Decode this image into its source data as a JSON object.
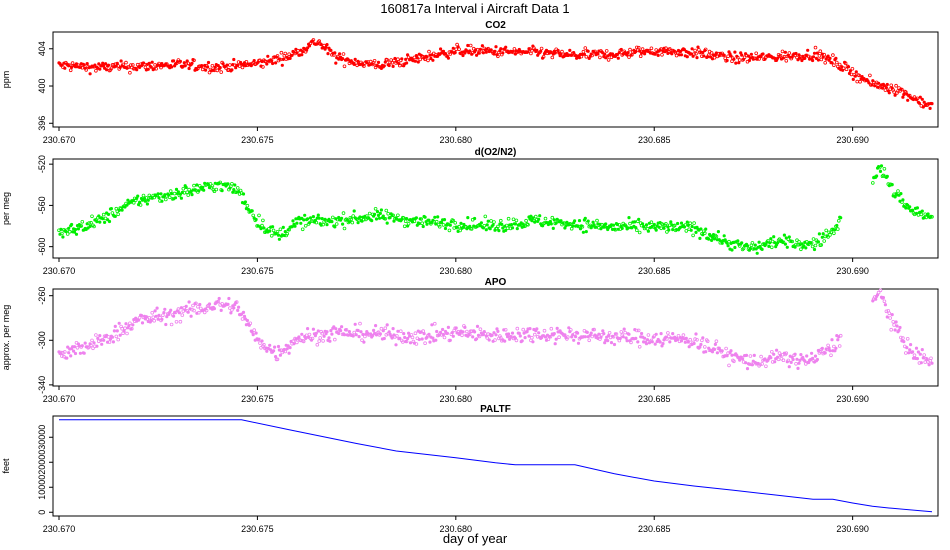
{
  "figure": {
    "title": "160817a   Interval i Aircraft Data 1",
    "xlabel": "day of year"
  },
  "chart_data": [
    {
      "type": "scatter",
      "title": "CO2",
      "ylabel": "ppm",
      "color": "#ff0000",
      "xlim": [
        230.67,
        230.692
      ],
      "ylim": [
        395.6,
        405.8
      ],
      "yticks": [
        396,
        400,
        404
      ],
      "xticks": [
        "230.670",
        "230.675",
        "230.680",
        "230.685",
        "230.690"
      ],
      "x": [
        230.67,
        230.671,
        230.672,
        230.673,
        230.674,
        230.675,
        230.6758,
        230.6765,
        230.677,
        230.678,
        230.679,
        230.68,
        230.681,
        230.682,
        230.683,
        230.684,
        230.685,
        230.686,
        230.687,
        230.688,
        230.689,
        230.6895,
        230.6905,
        230.691,
        230.6915,
        230.692
      ],
      "y": [
        402.2,
        402.0,
        402.1,
        402.3,
        402.0,
        402.4,
        403.2,
        404.8,
        403.0,
        402.2,
        402.9,
        403.8,
        403.7,
        403.6,
        403.3,
        403.4,
        403.8,
        403.6,
        403.0,
        403.1,
        403.4,
        402.7,
        400.2,
        399.8,
        398.8,
        397.8
      ]
    },
    {
      "type": "scatter",
      "title": "d(O2/N2)",
      "ylabel": "per meg",
      "color": "#00ee00",
      "xlim": [
        230.67,
        230.692
      ],
      "ylim": [
        -611,
        -515
      ],
      "yticks": [
        -520,
        -560,
        -600
      ],
      "xticks": [
        "230.670",
        "230.675",
        "230.680",
        "230.685",
        "230.690"
      ],
      "x": [
        230.67,
        230.671,
        230.672,
        230.673,
        230.674,
        230.6745,
        230.675,
        230.6755,
        230.676,
        230.677,
        230.678,
        230.679,
        230.68,
        230.681,
        230.682,
        230.683,
        230.684,
        230.685,
        230.686,
        230.687,
        230.6875,
        230.688,
        230.689,
        230.6895,
        230.6907,
        230.691,
        230.6915,
        230.692
      ],
      "y": [
        -588,
        -575,
        -555,
        -548,
        -540,
        -545,
        -575,
        -590,
        -576,
        -575,
        -570,
        -575,
        -578,
        -580,
        -575,
        -578,
        -581,
        -581,
        -582,
        -598,
        -602,
        -595,
        -598,
        -585,
        -523,
        -545,
        -565,
        -572
      ]
    },
    {
      "type": "scatter",
      "title": "APO",
      "ylabel": "approx. per meg",
      "color": "#ee82ee",
      "xlim": [
        230.67,
        230.692
      ],
      "ylim": [
        -341,
        -254
      ],
      "yticks": [
        -260,
        -300,
        -340
      ],
      "xticks": [
        "230.670",
        "230.675",
        "230.680",
        "230.685",
        "230.690"
      ],
      "x": [
        230.67,
        230.671,
        230.672,
        230.673,
        230.674,
        230.6745,
        230.675,
        230.6755,
        230.676,
        230.677,
        230.678,
        230.679,
        230.68,
        230.681,
        230.682,
        230.683,
        230.684,
        230.685,
        230.686,
        230.687,
        230.6875,
        230.688,
        230.689,
        230.6895,
        230.6907,
        230.691,
        230.6915,
        230.692
      ],
      "y": [
        -314,
        -302,
        -282,
        -276,
        -268,
        -270,
        -300,
        -312,
        -298,
        -293,
        -294,
        -297,
        -293,
        -296,
        -294,
        -295,
        -297,
        -298,
        -300,
        -315,
        -320,
        -316,
        -318,
        -305,
        -258,
        -285,
        -312,
        -320
      ]
    },
    {
      "type": "line",
      "title": "PALTF",
      "ylabel": "feet",
      "color": "#0000ff",
      "xlim": [
        230.67,
        230.692
      ],
      "ylim": [
        -1500,
        38500
      ],
      "yticks": [
        0,
        10000,
        20000,
        30000
      ],
      "xticks": [
        "230.670",
        "230.675",
        "230.680",
        "230.685",
        "230.690"
      ],
      "x": [
        230.67,
        230.6746,
        230.6758,
        230.6775,
        230.6785,
        230.68,
        230.681,
        230.6815,
        230.6823,
        230.683,
        230.684,
        230.685,
        230.686,
        230.687,
        230.688,
        230.689,
        230.6895,
        230.69,
        230.6905,
        230.691,
        230.692
      ],
      "y": [
        37000,
        37000,
        33000,
        27500,
        24500,
        21800,
        19800,
        19000,
        19000,
        19000,
        15400,
        12500,
        10500,
        8800,
        7000,
        5200,
        5200,
        3700,
        2400,
        1600,
        200
      ]
    }
  ]
}
